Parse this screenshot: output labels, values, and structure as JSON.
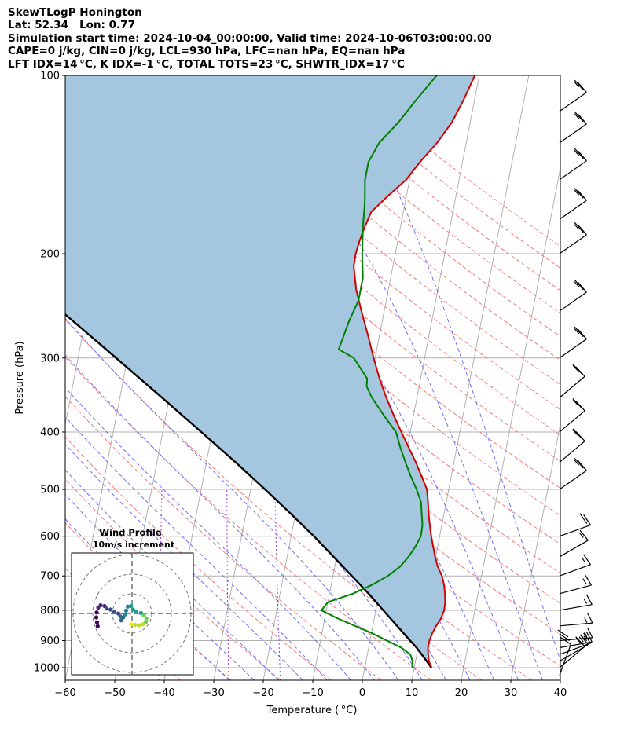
{
  "header": {
    "lines": [
      "SkewTLogP Honington",
      "Lat: 52.34   Lon: 0.77",
      "Simulation start time: 2024-10-04_00:00:00, Valid time: 2024-10-06T03:00:00.00",
      "CAPE=0 j/kg, CIN=0 j/kg, LCL=930 hPa, LFC=nan hPa, EQ=nan hPa",
      "LFT IDX=14 °C, K IDX=-1 °C, TOTAL TOTS=23 °C, SHWTR_IDX=17 °C"
    ]
  },
  "chart_data": [
    {
      "type": "line",
      "chart_kind": "Skew-T log-P diagram",
      "xlabel": "Temperature ( °C)",
      "ylabel": "Pressure (hPa)",
      "x_ticks": [
        "−60",
        "−50",
        "−40",
        "−30",
        "−20",
        "−10",
        "0",
        "10",
        "20",
        "30",
        "40"
      ],
      "x_tick_values": [
        -60,
        -50,
        -40,
        -30,
        -20,
        -10,
        0,
        10,
        20,
        30,
        40
      ],
      "y_ticks": [
        "100",
        "200",
        "300",
        "400",
        "500",
        "600",
        "700",
        "800",
        "900",
        "1000"
      ],
      "y_tick_values": [
        100,
        200,
        300,
        400,
        500,
        600,
        700,
        800,
        900,
        1000
      ],
      "xlim": [
        -60,
        40
      ],
      "ylim": [
        1050,
        100
      ],
      "y_scale": "log",
      "grid": true,
      "colors": {
        "temperature": "#d40000",
        "dewpoint": "#008000",
        "parcel": "#000000",
        "cape_fill": "#a5c6df",
        "isotherm": "#aaaaaa",
        "dry_adiabat": "#f47a7a",
        "moist_adiabat": "#6f6ff3",
        "mixing_ratio": "#9b3fcf"
      },
      "series": [
        {
          "role": "temperature",
          "points": [
            [
              1000,
              13.5
            ],
            [
              975,
              12.7
            ],
            [
              950,
              12.3
            ],
            [
              925,
              12.0
            ],
            [
              900,
              12.0
            ],
            [
              875,
              12.3
            ],
            [
              850,
              12.8
            ],
            [
              825,
              13.5
            ],
            [
              800,
              13.8
            ],
            [
              775,
              13.7
            ],
            [
              750,
              13.3
            ],
            [
              725,
              12.8
            ],
            [
              700,
              12.0
            ],
            [
              675,
              10.8
            ],
            [
              650,
              9.9
            ],
            [
              625,
              9.1
            ],
            [
              600,
              8.3
            ],
            [
              575,
              7.6
            ],
            [
              550,
              6.9
            ],
            [
              525,
              6.3
            ],
            [
              500,
              5.6
            ],
            [
              475,
              4.0
            ],
            [
              450,
              2.3
            ],
            [
              425,
              0.3
            ],
            [
              400,
              -1.8
            ],
            [
              375,
              -4.0
            ],
            [
              350,
              -6.2
            ],
            [
              325,
              -8.3
            ],
            [
              300,
              -10.3
            ],
            [
              275,
              -12.3
            ],
            [
              250,
              -14.6
            ],
            [
              230,
              -16.5
            ],
            [
              210,
              -17.9
            ],
            [
              200,
              -18.0
            ],
            [
              190,
              -17.7
            ],
            [
              180,
              -17.2
            ],
            [
              170,
              -16.5
            ],
            [
              160,
              -13.8
            ],
            [
              150,
              -10.7
            ],
            [
              140,
              -8.6
            ],
            [
              130,
              -5.9
            ],
            [
              120,
              -3.7
            ],
            [
              110,
              -2.2
            ],
            [
              100,
              -0.9
            ]
          ]
        },
        {
          "role": "dewpoint",
          "points": [
            [
              1000,
              9.6
            ],
            [
              975,
              9.4
            ],
            [
              950,
              8.7
            ],
            [
              925,
              6.6
            ],
            [
              900,
              3.4
            ],
            [
              875,
              0.2
            ],
            [
              850,
              -3.6
            ],
            [
              825,
              -7.5
            ],
            [
              800,
              -11.0
            ],
            [
              775,
              -10.0
            ],
            [
              750,
              -5.3
            ],
            [
              725,
              -1.8
            ],
            [
              700,
              1.1
            ],
            [
              675,
              3.2
            ],
            [
              650,
              4.5
            ],
            [
              625,
              5.5
            ],
            [
              600,
              6.2
            ],
            [
              575,
              6.1
            ],
            [
              550,
              5.5
            ],
            [
              525,
              4.9
            ],
            [
              500,
              3.5
            ],
            [
              475,
              1.8
            ],
            [
              450,
              0.2
            ],
            [
              425,
              -1.4
            ],
            [
              400,
              -2.9
            ],
            [
              375,
              -6.0
            ],
            [
              350,
              -9.1
            ],
            [
              335,
              -10.6
            ],
            [
              325,
              -10.8
            ],
            [
              300,
              -14.3
            ],
            [
              290,
              -17.7
            ],
            [
              275,
              -17.2
            ],
            [
              260,
              -16.7
            ],
            [
              240,
              -15.6
            ],
            [
              220,
              -15.6
            ],
            [
              200,
              -16.7
            ],
            [
              180,
              -17.6
            ],
            [
              165,
              -18.1
            ],
            [
              150,
              -19.0
            ],
            [
              140,
              -19.0
            ],
            [
              130,
              -17.6
            ],
            [
              120,
              -14.5
            ],
            [
              110,
              -11.8
            ],
            [
              100,
              -8.6
            ]
          ]
        },
        {
          "role": "parcel",
          "points": [
            [
              1000,
              13.5
            ],
            [
              925,
              9.7
            ],
            [
              900,
              8.1
            ],
            [
              850,
              4.9
            ],
            [
              800,
              1.5
            ],
            [
              750,
              -2.1
            ],
            [
              700,
              -6.2
            ],
            [
              650,
              -10.6
            ],
            [
              600,
              -15.4
            ],
            [
              550,
              -20.9
            ],
            [
              500,
              -27.1
            ],
            [
              450,
              -34.1
            ],
            [
              400,
              -42.2
            ],
            [
              350,
              -51.5
            ],
            [
              300,
              -62.3
            ],
            [
              250,
              -75.2
            ],
            [
              200,
              -91.0
            ],
            [
              150,
              -111.0
            ],
            [
              100,
              -138.0
            ]
          ]
        }
      ],
      "wind_barbs": [
        {
          "p": 1030,
          "speed_kt": 30,
          "dir": 200
        },
        {
          "p": 1000,
          "speed_kt": 15,
          "dir": 230
        },
        {
          "p": 975,
          "speed_kt": 15,
          "dir": 240
        },
        {
          "p": 950,
          "speed_kt": 15,
          "dir": 250
        },
        {
          "p": 925,
          "speed_kt": 15,
          "dir": 260
        },
        {
          "p": 900,
          "speed_kt": 15,
          "dir": 265
        },
        {
          "p": 850,
          "speed_kt": 15,
          "dir": 265
        },
        {
          "p": 800,
          "speed_kt": 15,
          "dir": 260
        },
        {
          "p": 750,
          "speed_kt": 15,
          "dir": 255
        },
        {
          "p": 700,
          "speed_kt": 15,
          "dir": 250
        },
        {
          "p": 650,
          "speed_kt": 15,
          "dir": 240
        },
        {
          "p": 600,
          "speed_kt": 20,
          "dir": 250
        },
        {
          "p": 500,
          "speed_kt": 25,
          "dir": 235
        },
        {
          "p": 450,
          "speed_kt": 25,
          "dir": 230
        },
        {
          "p": 400,
          "speed_kt": 25,
          "dir": 230
        },
        {
          "p": 350,
          "speed_kt": 25,
          "dir": 230
        },
        {
          "p": 300,
          "speed_kt": 25,
          "dir": 235
        },
        {
          "p": 250,
          "speed_kt": 25,
          "dir": 235
        },
        {
          "p": 200,
          "speed_kt": 25,
          "dir": 235
        },
        {
          "p": 175,
          "speed_kt": 25,
          "dir": 235
        },
        {
          "p": 150,
          "speed_kt": 25,
          "dir": 235
        },
        {
          "p": 130,
          "speed_kt": 25,
          "dir": 235
        },
        {
          "p": 115,
          "speed_kt": 25,
          "dir": 235
        }
      ]
    },
    {
      "type": "scatter",
      "title": "Wind Profile",
      "subtitle": "10m/s increment",
      "ring_spacing_ms": 10,
      "rings": 3,
      "colormap": "viridis",
      "points": [
        {
          "u": -17.5,
          "v": -6.5
        },
        {
          "u": -17.8,
          "v": -4.5
        },
        {
          "u": -18.2,
          "v": -2.0
        },
        {
          "u": -18.0,
          "v": 0.5
        },
        {
          "u": -17.2,
          "v": 3.0
        },
        {
          "u": -16.0,
          "v": 4.2
        },
        {
          "u": -14.0,
          "v": 3.8
        },
        {
          "u": -13.0,
          "v": 2.5
        },
        {
          "u": -11.0,
          "v": 2.0
        },
        {
          "u": -9.0,
          "v": 0.8
        },
        {
          "u": -7.0,
          "v": 0.0
        },
        {
          "u": -6.0,
          "v": -1.5
        },
        {
          "u": -5.5,
          "v": -3.5
        },
        {
          "u": -4.5,
          "v": -2.0
        },
        {
          "u": -3.5,
          "v": -0.5
        },
        {
          "u": -3.0,
          "v": 1.5
        },
        {
          "u": -2.2,
          "v": 3.5
        },
        {
          "u": -0.5,
          "v": 3.8
        },
        {
          "u": 0.5,
          "v": 2.0
        },
        {
          "u": 2.0,
          "v": 0.8
        },
        {
          "u": 4.5,
          "v": 0.3
        },
        {
          "u": 6.0,
          "v": -1.0
        },
        {
          "u": 7.3,
          "v": -2.5
        },
        {
          "u": 7.0,
          "v": -4.5
        },
        {
          "u": 5.5,
          "v": -5.5
        },
        {
          "u": 3.5,
          "v": -6.0
        },
        {
          "u": 1.5,
          "v": -5.8
        },
        {
          "u": -0.5,
          "v": -5.5
        }
      ]
    }
  ]
}
